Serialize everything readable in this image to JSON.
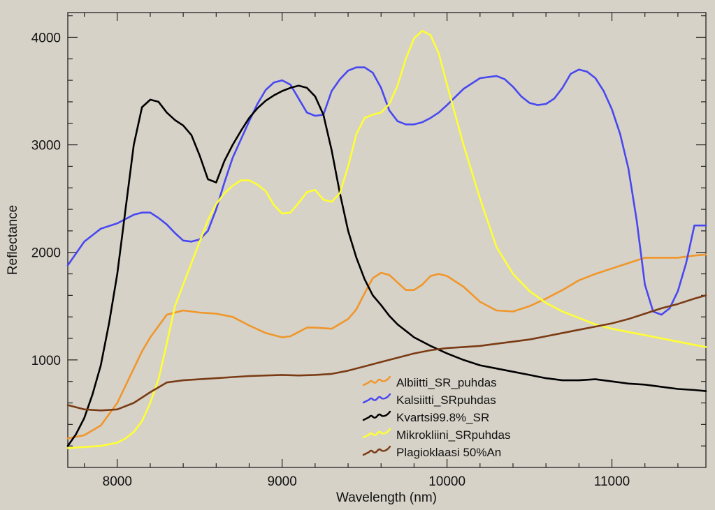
{
  "chart_data": {
    "type": "line",
    "title": "",
    "xlabel": "Wavelength (nm)",
    "ylabel": "Reflectance",
    "xlim": [
      7700,
      11570
    ],
    "ylim": [
      0,
      4230
    ],
    "xticks": [
      8000,
      9000,
      10000,
      11000
    ],
    "xtick_labels": [
      "8000",
      "9000",
      "10000",
      "11000"
    ],
    "yticks": [
      1000,
      2000,
      3000,
      4000
    ],
    "ytick_labels": [
      "1000",
      "2000",
      "3000",
      "4000"
    ],
    "grid": false,
    "legend_position": "bottom-center",
    "series": [
      {
        "name": "Albiitti_SR_puhdas",
        "color": "#f0962a",
        "x": [
          7700,
          7800,
          7900,
          8000,
          8100,
          8150,
          8200,
          8300,
          8400,
          8500,
          8600,
          8700,
          8800,
          8900,
          9000,
          9050,
          9100,
          9150,
          9200,
          9300,
          9400,
          9450,
          9500,
          9550,
          9600,
          9650,
          9700,
          9750,
          9800,
          9850,
          9900,
          9950,
          10000,
          10100,
          10200,
          10300,
          10400,
          10500,
          10600,
          10700,
          10800,
          10900,
          11000,
          11100,
          11200,
          11300,
          11400,
          11500,
          11570
        ],
        "y": [
          270,
          300,
          390,
          600,
          920,
          1080,
          1210,
          1420,
          1460,
          1440,
          1430,
          1400,
          1320,
          1250,
          1210,
          1220,
          1260,
          1300,
          1300,
          1290,
          1380,
          1470,
          1620,
          1760,
          1810,
          1790,
          1720,
          1650,
          1650,
          1700,
          1780,
          1800,
          1780,
          1680,
          1540,
          1460,
          1450,
          1500,
          1570,
          1650,
          1740,
          1800,
          1850,
          1900,
          1950,
          1950,
          1950,
          1970,
          1980
        ]
      },
      {
        "name": "Kalsiitti_SRpuhdas",
        "color": "#4848f0",
        "x": [
          7700,
          7800,
          7900,
          8000,
          8100,
          8150,
          8200,
          8250,
          8300,
          8350,
          8400,
          8450,
          8500,
          8550,
          8600,
          8650,
          8700,
          8750,
          8800,
          8850,
          8900,
          8950,
          9000,
          9050,
          9100,
          9150,
          9200,
          9250,
          9300,
          9350,
          9400,
          9450,
          9500,
          9550,
          9600,
          9650,
          9700,
          9750,
          9800,
          9850,
          9900,
          9950,
          10000,
          10100,
          10200,
          10300,
          10350,
          10400,
          10450,
          10500,
          10550,
          10600,
          10650,
          10700,
          10750,
          10800,
          10850,
          10900,
          10950,
          11000,
          11050,
          11100,
          11150,
          11200,
          11250,
          11300,
          11350,
          11400,
          11450,
          11500,
          11570
        ],
        "y": [
          1880,
          2100,
          2220,
          2270,
          2350,
          2370,
          2370,
          2320,
          2260,
          2180,
          2110,
          2100,
          2120,
          2200,
          2400,
          2650,
          2880,
          3050,
          3220,
          3380,
          3510,
          3580,
          3600,
          3560,
          3430,
          3300,
          3270,
          3280,
          3500,
          3610,
          3690,
          3720,
          3720,
          3670,
          3530,
          3320,
          3220,
          3190,
          3190,
          3210,
          3250,
          3300,
          3370,
          3520,
          3620,
          3640,
          3610,
          3540,
          3450,
          3390,
          3370,
          3380,
          3430,
          3530,
          3660,
          3700,
          3680,
          3620,
          3500,
          3330,
          3100,
          2780,
          2300,
          1700,
          1450,
          1420,
          1480,
          1640,
          1900,
          2250,
          2250
        ]
      },
      {
        "name": "Kvartsi99.8%_SR",
        "color": "#000000",
        "x": [
          7700,
          7750,
          7800,
          7850,
          7900,
          7950,
          8000,
          8050,
          8100,
          8150,
          8200,
          8250,
          8300,
          8350,
          8400,
          8450,
          8500,
          8550,
          8600,
          8650,
          8700,
          8750,
          8800,
          8850,
          8900,
          8950,
          9000,
          9050,
          9100,
          9150,
          9200,
          9250,
          9300,
          9350,
          9400,
          9450,
          9500,
          9550,
          9600,
          9650,
          9700,
          9750,
          9800,
          9900,
          10000,
          10100,
          10200,
          10300,
          10400,
          10500,
          10600,
          10700,
          10800,
          10900,
          11000,
          11100,
          11200,
          11300,
          11400,
          11500,
          11570
        ],
        "y": [
          200,
          310,
          460,
          680,
          950,
          1340,
          1800,
          2400,
          3000,
          3350,
          3420,
          3400,
          3300,
          3230,
          3180,
          3090,
          2900,
          2680,
          2650,
          2850,
          3000,
          3130,
          3250,
          3340,
          3410,
          3460,
          3500,
          3530,
          3550,
          3530,
          3450,
          3280,
          2950,
          2550,
          2200,
          1950,
          1750,
          1600,
          1510,
          1410,
          1330,
          1270,
          1210,
          1130,
          1060,
          1000,
          950,
          920,
          890,
          860,
          830,
          810,
          810,
          820,
          800,
          780,
          770,
          750,
          730,
          720,
          710
        ]
      },
      {
        "name": "Mikrokliini_SRpuhdas",
        "color": "#ffff33",
        "x": [
          7700,
          7800,
          7900,
          8000,
          8050,
          8100,
          8150,
          8200,
          8250,
          8300,
          8350,
          8400,
          8450,
          8500,
          8550,
          8600,
          8650,
          8700,
          8750,
          8800,
          8850,
          8900,
          8950,
          9000,
          9050,
          9100,
          9150,
          9200,
          9250,
          9300,
          9350,
          9400,
          9450,
          9500,
          9550,
          9600,
          9650,
          9700,
          9750,
          9800,
          9850,
          9900,
          9950,
          10000,
          10100,
          10200,
          10300,
          10400,
          10500,
          10600,
          10700,
          10800,
          10900,
          11000,
          11100,
          11200,
          11300,
          11400,
          11500,
          11570
        ],
        "y": [
          180,
          190,
          200,
          230,
          270,
          330,
          430,
          600,
          820,
          1150,
          1500,
          1700,
          1900,
          2100,
          2300,
          2450,
          2550,
          2620,
          2670,
          2670,
          2630,
          2570,
          2440,
          2360,
          2370,
          2460,
          2560,
          2580,
          2490,
          2470,
          2550,
          2800,
          3100,
          3250,
          3280,
          3300,
          3380,
          3550,
          3800,
          3990,
          4060,
          4020,
          3850,
          3560,
          3000,
          2500,
          2050,
          1800,
          1640,
          1530,
          1450,
          1390,
          1330,
          1290,
          1260,
          1230,
          1200,
          1170,
          1140,
          1120
        ]
      },
      {
        "name": "Plagioklaasi 50%An",
        "color": "#7a3b14",
        "x": [
          7700,
          7800,
          7900,
          8000,
          8100,
          8200,
          8300,
          8400,
          8500,
          8600,
          8700,
          8800,
          8900,
          9000,
          9100,
          9200,
          9300,
          9400,
          9500,
          9600,
          9700,
          9800,
          9900,
          10000,
          10100,
          10200,
          10300,
          10400,
          10500,
          10600,
          10700,
          10800,
          10900,
          11000,
          11100,
          11200,
          11300,
          11400,
          11500,
          11570
        ],
        "y": [
          580,
          540,
          530,
          540,
          600,
          700,
          790,
          810,
          820,
          830,
          840,
          850,
          855,
          860,
          855,
          860,
          870,
          900,
          940,
          980,
          1020,
          1060,
          1090,
          1110,
          1120,
          1130,
          1150,
          1170,
          1190,
          1220,
          1250,
          1280,
          1310,
          1340,
          1380,
          1430,
          1480,
          1520,
          1570,
          1600
        ]
      }
    ]
  }
}
